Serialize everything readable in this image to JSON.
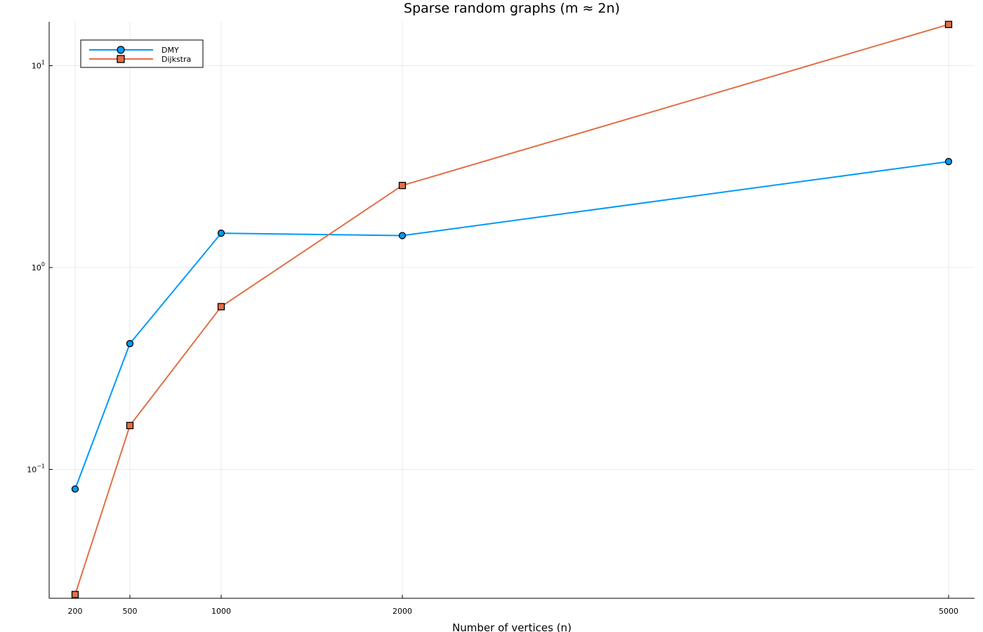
{
  "chart_data": {
    "type": "line",
    "title": "Sparse random graphs (m ≈ 2n)",
    "xlabel": "Number of vertices (n)",
    "ylabel": "",
    "yscale": "log",
    "ylim": [
      0.023,
      16.5
    ],
    "x_tick_values": [
      200,
      500,
      1000,
      2000,
      5000
    ],
    "x_tick_labels": [
      "200",
      "500",
      "1000",
      "2000",
      "5000"
    ],
    "y_ticks": [
      {
        "value": 0.1,
        "base": "10",
        "exp": "−1"
      },
      {
        "value": 1,
        "base": "10",
        "exp": "0"
      },
      {
        "value": 10,
        "base": "10",
        "exp": "1"
      }
    ],
    "grid": true,
    "legend_position": "top-left",
    "series": [
      {
        "name": "DMY",
        "color": "#009af9",
        "marker": "circle",
        "x": [
          200,
          500,
          1000,
          2000,
          5000
        ],
        "values": [
          0.08,
          0.42,
          1.48,
          1.44,
          3.35
        ]
      },
      {
        "name": "Dijkstra",
        "color": "#e26f46",
        "marker": "square",
        "x": [
          200,
          500,
          1000,
          2000,
          5000
        ],
        "values": [
          0.024,
          0.165,
          0.64,
          2.55,
          16.0
        ]
      }
    ]
  }
}
